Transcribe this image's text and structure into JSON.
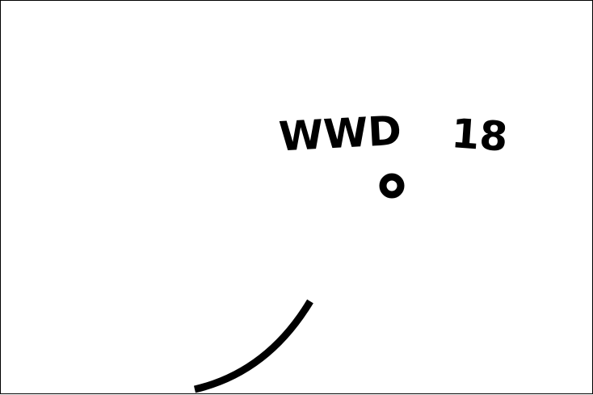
{
  "labels": {
    "left": "WWD",
    "right": "18"
  },
  "colors": {
    "background": "#ffffff",
    "ink": "#000000"
  },
  "icons": {
    "ring": "ring-icon",
    "arc": "arc-stroke"
  }
}
